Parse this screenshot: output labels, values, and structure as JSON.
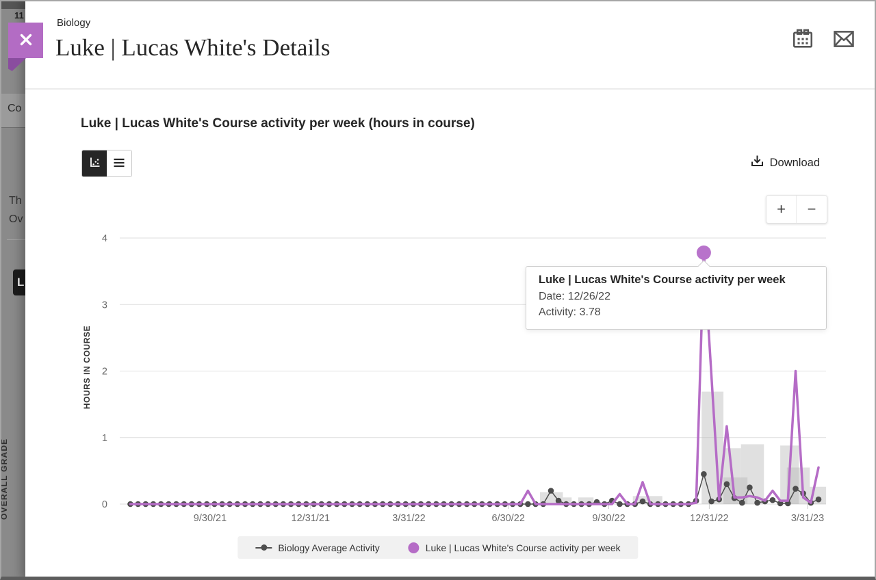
{
  "background": {
    "top_number": "11",
    "content_tab": "Co",
    "line1": "Th",
    "line2": "Ov",
    "grade_pill": "L",
    "overall_grade_label": "OVERALL GRADE"
  },
  "panel": {
    "course": "Biology",
    "title": "Luke | Lucas White's Details",
    "icons": {
      "close": "close-icon",
      "calendar": "calendar-icon",
      "mail": "mail-icon"
    }
  },
  "chart_section": {
    "title": "Luke | Lucas White's Course activity per week (hours in course)",
    "view_toggle": {
      "selected": "chart-view",
      "options": [
        "chart-view",
        "table-view"
      ]
    },
    "download_label": "Download",
    "zoom_controls": {
      "zoom_in": "+",
      "zoom_out": "−"
    }
  },
  "tooltip": {
    "title": "Luke | Lucas White's Course activity per week",
    "date_label": "Date: 12/26/22",
    "activity_label": "Activity: 3.78"
  },
  "legend": {
    "items": [
      {
        "label": "Biology Average Activity",
        "marker": "line-dot",
        "color": "#4f4f4f"
      },
      {
        "label": "Luke | Lucas White's Course activity per week",
        "marker": "dot",
        "color": "#b56cc6"
      }
    ]
  },
  "chart_data": {
    "type": "line",
    "title": "Luke | Lucas White's Course activity per week (hours in course)",
    "xlabel": "",
    "ylabel": "HOURS IN COURSE",
    "ylim": [
      0,
      4
    ],
    "y_ticks": [
      0,
      1,
      2,
      3,
      4
    ],
    "x_ticks": [
      {
        "label": "9/30/21",
        "date": "2021-09-30"
      },
      {
        "label": "12/31/21",
        "date": "2021-12-31"
      },
      {
        "label": "3/31/22",
        "date": "2022-03-31"
      },
      {
        "label": "6/30/22",
        "date": "2022-06-30"
      },
      {
        "label": "9/30/22",
        "date": "2022-09-30"
      },
      {
        "label": "12/31/22",
        "date": "2022-12-31"
      },
      {
        "label": "3/31/23",
        "date": "2023-03-31"
      }
    ],
    "interval": "weekly",
    "start_week": "2021-07-19",
    "end_week": "2023-04-10",
    "grid": true,
    "legend_position": "bottom",
    "bar_color": "#b5b5b5",
    "series": [
      {
        "name": "Biology Average Activity",
        "style": "line-with-dots",
        "color": "#4d4d4d",
        "default_value": 0,
        "nonzero_values": {
          "2022-08-08": 0.2,
          "2022-08-15": 0.05,
          "2022-09-19": 0.03,
          "2022-10-03": 0.05,
          "2022-10-31": 0.04,
          "2022-12-19": 0.05,
          "2022-12-26": 0.45,
          "2023-01-02": 0.04,
          "2023-01-09": 0.07,
          "2023-01-16": 0.3,
          "2023-01-23": 0.09,
          "2023-01-30": 0.02,
          "2023-02-06": 0.25,
          "2023-02-13": 0.02,
          "2023-02-20": 0.04,
          "2023-02-27": 0.06,
          "2023-03-06": 0.01,
          "2023-03-13": 0.01,
          "2023-03-20": 0.23,
          "2023-03-27": 0.16,
          "2023-04-03": 0.02,
          "2023-04-10": 0.07
        }
      },
      {
        "name": "Luke | Lucas White's Course activity per week",
        "style": "line",
        "color": "#b56cc6",
        "default_value": 0,
        "nonzero_values": {
          "2022-07-18": 0.2,
          "2022-10-10": 0.15,
          "2022-10-31": 0.33,
          "2022-12-19": 0.02,
          "2022-12-26": 3.78,
          "2023-01-02": 1.92,
          "2023-01-09": 0.07,
          "2023-01-16": 1.17,
          "2023-01-23": 0.1,
          "2023-01-30": 0.1,
          "2023-02-06": 0.12,
          "2023-02-13": 0.1,
          "2023-02-20": 0.05,
          "2023-02-27": 0.2,
          "2023-03-06": 0.05,
          "2023-03-13": 0.05,
          "2023-03-20": 2.0,
          "2023-03-27": 0.1,
          "2023-04-03": 0.02,
          "2023-04-10": 0.55
        }
      }
    ],
    "bars": [
      {
        "from": "2022-07-29",
        "to": "2022-08-19",
        "hours": 0.18
      },
      {
        "from": "2022-08-19",
        "to": "2022-08-27",
        "hours": 0.1
      },
      {
        "from": "2022-09-02",
        "to": "2022-09-16",
        "hours": 0.1
      },
      {
        "from": "2022-10-22",
        "to": "2022-11-18",
        "hours": 0.12
      },
      {
        "from": "2022-12-24",
        "to": "2023-01-13",
        "hours": 1.69
      },
      {
        "from": "2023-01-13",
        "to": "2023-02-04",
        "hours": 0.4
      },
      {
        "from": "2023-01-13",
        "to": "2023-01-29",
        "hours": 0.84
      },
      {
        "from": "2023-01-29",
        "to": "2023-02-19",
        "hours": 0.9
      },
      {
        "from": "2023-03-06",
        "to": "2023-03-23",
        "hours": 0.88
      },
      {
        "from": "2023-03-12",
        "to": "2023-04-02",
        "hours": 0.55
      },
      {
        "from": "2023-04-02",
        "to": "2023-04-17",
        "hours": 0.26
      }
    ],
    "highlight_point": {
      "series": "Luke | Lucas White's Course activity per week",
      "date": "2022-12-26",
      "value": 3.78
    }
  }
}
